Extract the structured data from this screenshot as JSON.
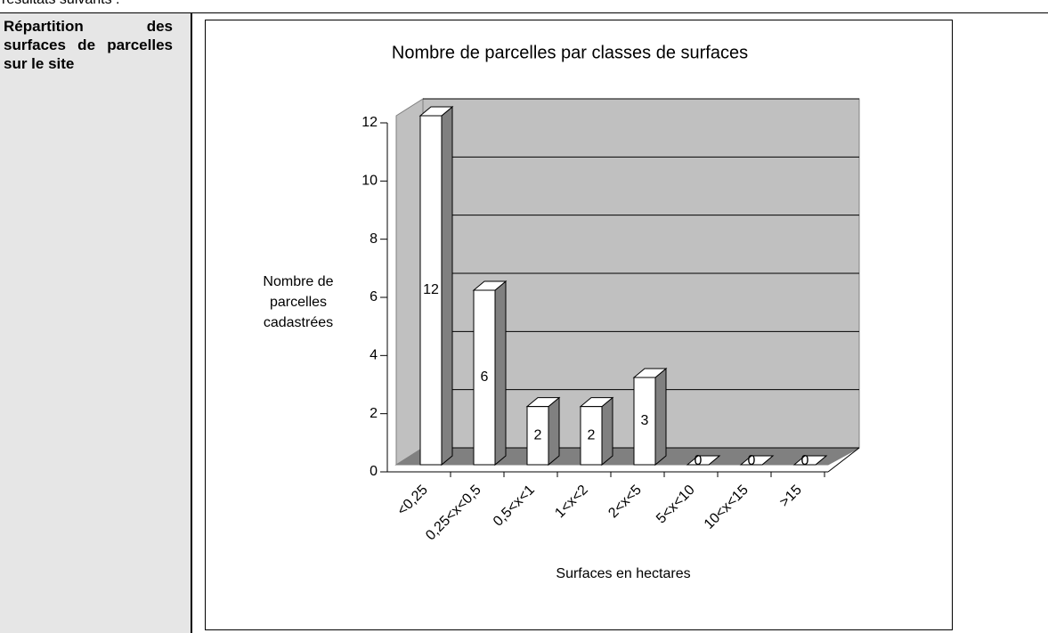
{
  "intro": "résultats suivants :",
  "table": {
    "label": "Répartition des surfaces de parcelles sur le site"
  },
  "chart_data": {
    "type": "bar3d",
    "title": "Nombre de parcelles par classes de surfaces",
    "xlabel": "Surfaces en hectares",
    "ylabel": "Nombre de parcelles cadastrées",
    "categories": [
      "<0,25",
      "0,25<x<0,5",
      "0,5<x<1",
      "1<x<2",
      "2<x<5",
      "5<x<10",
      "10<x<15",
      ">15"
    ],
    "values": [
      12,
      6,
      2,
      2,
      3,
      0,
      0,
      0
    ],
    "ylim": [
      0,
      12
    ],
    "yticks": [
      0,
      2,
      4,
      6,
      8,
      10,
      12
    ],
    "grid": true,
    "color": "#ffffff",
    "side_color": "#808080",
    "wall_color": "#c0c0c0",
    "floor_color": "#808080"
  }
}
